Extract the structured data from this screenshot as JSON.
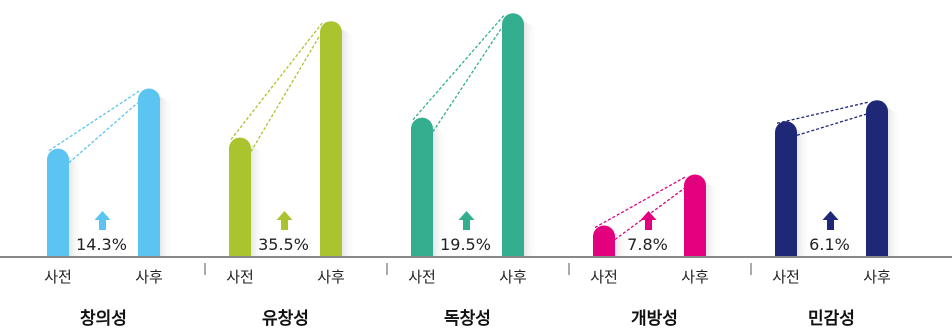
{
  "chart_data": {
    "type": "bar",
    "categories": [
      "창의성",
      "유창성",
      "독창성",
      "개방성",
      "민감성"
    ],
    "bar_labels": {
      "before": "사전",
      "after": "사후"
    },
    "series": [
      {
        "values": [
          60.2,
          66.4,
          77.4,
          17.5,
          75.4
        ]
      },
      {
        "values": [
          93.6,
          131.0,
          135.4,
          45.8,
          87.1
        ]
      }
    ],
    "increase_labels": [
      "14.3%",
      "35.5%",
      "19.5%",
      "7.8%",
      "6.1%"
    ],
    "colors": [
      "#5BC4F1",
      "#A9C42E",
      "#33AE8E",
      "#E3007F",
      "#1E2877"
    ],
    "ylim": [
      0,
      140
    ],
    "grid": false,
    "legend": "none"
  }
}
